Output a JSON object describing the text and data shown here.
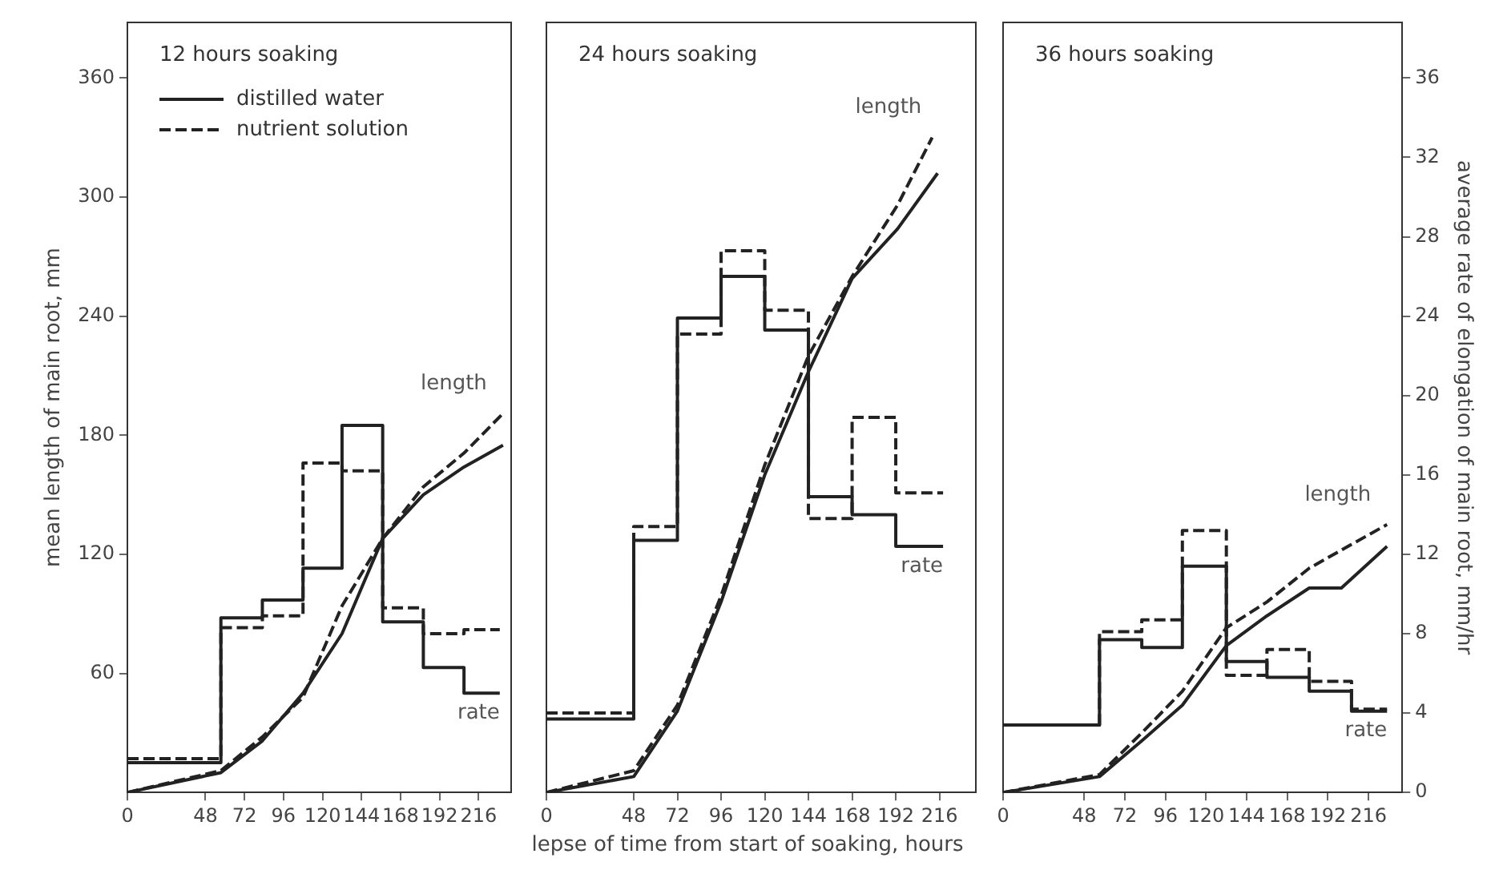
{
  "chart_data": [
    {
      "type": "line",
      "title": "12 hours soaking",
      "ylabel": "mean length of main root, mm",
      "legend": "top left",
      "xlim": [
        0,
        236
      ],
      "xticks": [
        0,
        48,
        72,
        96,
        120,
        144,
        168,
        192,
        216
      ],
      "ylim": [
        0,
        388
      ],
      "yticks": [
        60,
        120,
        180,
        240,
        300,
        360
      ],
      "y2lim": [
        0,
        38.8
      ],
      "annotations": [
        "length",
        "rate"
      ],
      "series": [
        {
          "name": "distilled water",
          "color": "#222222",
          "line_style": "solid",
          "x": [
            0,
            57.5,
            83,
            108,
            132,
            145,
            157,
            182,
            207,
            231
          ],
          "values": [
            0,
            10,
            26,
            50,
            80,
            105,
            128,
            150,
            164,
            175
          ]
        },
        {
          "name": "nutrient solution",
          "color": "#222222",
          "line_style": "dashed",
          "x": [
            0,
            57.5,
            83,
            108,
            132,
            157,
            182,
            207,
            231
          ],
          "values": [
            0,
            11,
            28,
            48,
            94,
            128,
            154,
            171,
            191
          ]
        },
        {
          "type": "step",
          "axis": "y2",
          "color": "#222222",
          "line_style": "solid",
          "x": [
            0,
            57.5,
            83,
            108,
            132,
            157,
            182,
            207,
            229
          ],
          "values": [
            1.5,
            8.8,
            9.7,
            11.3,
            18.5,
            8.6,
            6.3,
            5.0,
            5.0
          ]
        },
        {
          "type": "step",
          "axis": "y2",
          "color": "#222222",
          "line_style": "dashed",
          "x": [
            0,
            57.5,
            83,
            108,
            132,
            157,
            182,
            207,
            229
          ],
          "values": [
            1.7,
            8.3,
            8.9,
            16.6,
            16.2,
            9.3,
            8.0,
            8.2,
            8.2
          ]
        }
      ]
    },
    {
      "type": "line",
      "title": "24 hours soaking",
      "xlabel": "lepse of time from start of soaking, hours",
      "tick_labels": "x",
      "xlim": [
        0,
        236
      ],
      "xticks": [
        0,
        48,
        72,
        96,
        120,
        144,
        168,
        192,
        216
      ],
      "ylim": [
        0,
        388
      ],
      "y2lim": [
        0,
        38.8
      ],
      "annotations": [
        "length",
        "rate"
      ],
      "series": [
        {
          "color": "#222222",
          "line_style": "solid",
          "x": [
            0,
            48,
            72,
            96,
            120,
            144,
            168,
            193,
            215
          ],
          "values": [
            0,
            8,
            41,
            96,
            160,
            212,
            259,
            284,
            312
          ]
        },
        {
          "color": "#222222",
          "line_style": "dashed",
          "x": [
            0,
            48,
            72,
            96,
            120,
            144,
            168,
            193,
            212
          ],
          "values": [
            0,
            11,
            44,
            99,
            165,
            220,
            260,
            296,
            330
          ]
        },
        {
          "type": "step",
          "axis": "y2",
          "color": "#222222",
          "line_style": "solid",
          "x": [
            0,
            48,
            72,
            96,
            120,
            144,
            168,
            192,
            218
          ],
          "values": [
            3.7,
            12.7,
            23.9,
            26.0,
            23.3,
            14.9,
            14.0,
            12.4,
            12.4
          ]
        },
        {
          "type": "step",
          "axis": "y2",
          "color": "#222222",
          "line_style": "dashed",
          "x": [
            0,
            48,
            72,
            96,
            120,
            144,
            168,
            192,
            218
          ],
          "values": [
            4.0,
            13.4,
            23.1,
            27.3,
            24.3,
            13.8,
            18.9,
            15.1,
            15.1
          ]
        }
      ]
    },
    {
      "type": "line",
      "title": "36 hours soaking",
      "y2label": "average rate of elongation of main root, mm/hr",
      "xlim": [
        0,
        236
      ],
      "xticks": [
        0,
        48,
        72,
        96,
        120,
        144,
        168,
        192,
        216
      ],
      "ylim": [
        0,
        388
      ],
      "y2lim": [
        0,
        38.8
      ],
      "y2ticks": [
        0,
        4,
        8,
        12,
        16,
        20,
        24,
        28,
        32,
        36
      ],
      "annotations": [
        "length",
        "rate"
      ],
      "series": [
        {
          "color": "#222222",
          "line_style": "solid",
          "x": [
            0,
            57,
            82,
            106,
            132,
            156,
            181,
            200,
            227
          ],
          "values": [
            0,
            8,
            26,
            44,
            74,
            89,
            103,
            103,
            124
          ]
        },
        {
          "color": "#222222",
          "line_style": "dashed",
          "x": [
            0,
            57,
            82,
            106,
            132,
            156,
            181,
            206,
            227
          ],
          "values": [
            0,
            9,
            30,
            51,
            83,
            96,
            113,
            125,
            135
          ]
        },
        {
          "type": "step",
          "axis": "y2",
          "color": "#222222",
          "line_style": "solid",
          "x": [
            0,
            57,
            82,
            106,
            132,
            156,
            181,
            206,
            227
          ],
          "values": [
            3.4,
            7.7,
            7.3,
            11.4,
            6.6,
            5.8,
            5.1,
            4.1,
            4.1
          ]
        },
        {
          "type": "step",
          "axis": "y2",
          "color": "#222222",
          "line_style": "dashed",
          "x": [
            0,
            57,
            82,
            106,
            132,
            156,
            181,
            206,
            227
          ],
          "values": [
            3.4,
            8.1,
            8.7,
            13.2,
            5.9,
            7.2,
            5.6,
            4.2,
            4.2
          ]
        }
      ]
    }
  ]
}
